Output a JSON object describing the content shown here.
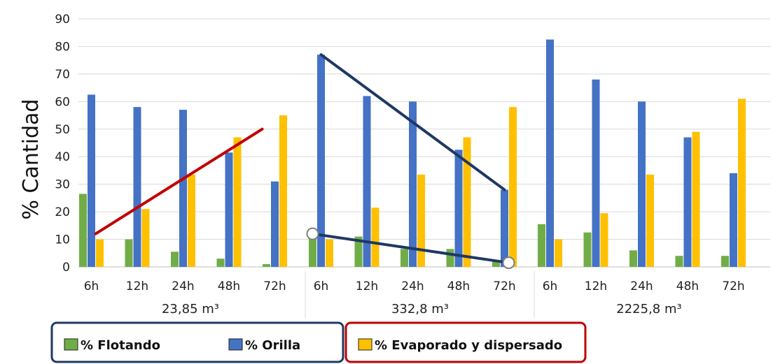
{
  "chart_data": {
    "type": "bar",
    "ylabel": "% Cantidad",
    "ylim": [
      0,
      90
    ],
    "yticks": [
      "0",
      "10",
      "20",
      "30",
      "40",
      "50",
      "60",
      "70",
      "80",
      "90"
    ],
    "groups": [
      {
        "label": "23,85 m³",
        "categories": [
          "6h",
          "12h",
          "24h",
          "48h",
          "72h"
        ]
      },
      {
        "label": "332,8 m³",
        "categories": [
          "6h",
          "12h",
          "24h",
          "48h",
          "72h"
        ]
      },
      {
        "label": "2225,8 m³",
        "categories": [
          "6h",
          "12h",
          "24h",
          "48h",
          "72h"
        ]
      }
    ],
    "series": [
      {
        "name": "% Flotando",
        "color": "#70ad47",
        "values": [
          26.5,
          10,
          5.5,
          3,
          1,
          12.5,
          11,
          6.5,
          6.5,
          2,
          15.5,
          12.5,
          6,
          4,
          4
        ]
      },
      {
        "name": "% Orilla",
        "color": "#4472c4",
        "values": [
          62.5,
          58,
          57,
          41.5,
          31,
          77,
          62,
          60,
          42.5,
          28,
          82.5,
          68,
          60,
          47,
          34
        ]
      },
      {
        "name": "% Evaporado y dispersado",
        "color": "#ffc000",
        "values": [
          10,
          21,
          33.5,
          47,
          55,
          10,
          21.5,
          33.5,
          47,
          58,
          10,
          19.5,
          33.5,
          49,
          61
        ]
      }
    ],
    "grid": true,
    "legend_position": "bottom",
    "annotations": [
      {
        "kind": "trend-line",
        "color": "#c00000",
        "from": {
          "group": 0,
          "category": "6h",
          "y": 12
        },
        "to": {
          "group": 0,
          "category": "72h",
          "y": 50
        }
      },
      {
        "kind": "trend-line",
        "color": "#1f3864",
        "from": {
          "group": 1,
          "category": "6h",
          "y": 77
        },
        "to": {
          "group": 1,
          "category": "72h",
          "y": 28
        }
      },
      {
        "kind": "trend-line",
        "color": "#1f3864",
        "from": {
          "group": 1,
          "category": "6h",
          "y": 12
        },
        "to": {
          "group": 1,
          "category": "72h",
          "y": 1.5
        }
      }
    ],
    "legend_boxes": [
      {
        "color": "#1f3864",
        "series": [
          "% Flotando",
          "% Orilla"
        ]
      },
      {
        "color": "#c00000",
        "series": [
          "% Evaporado y dispersado"
        ]
      }
    ]
  }
}
